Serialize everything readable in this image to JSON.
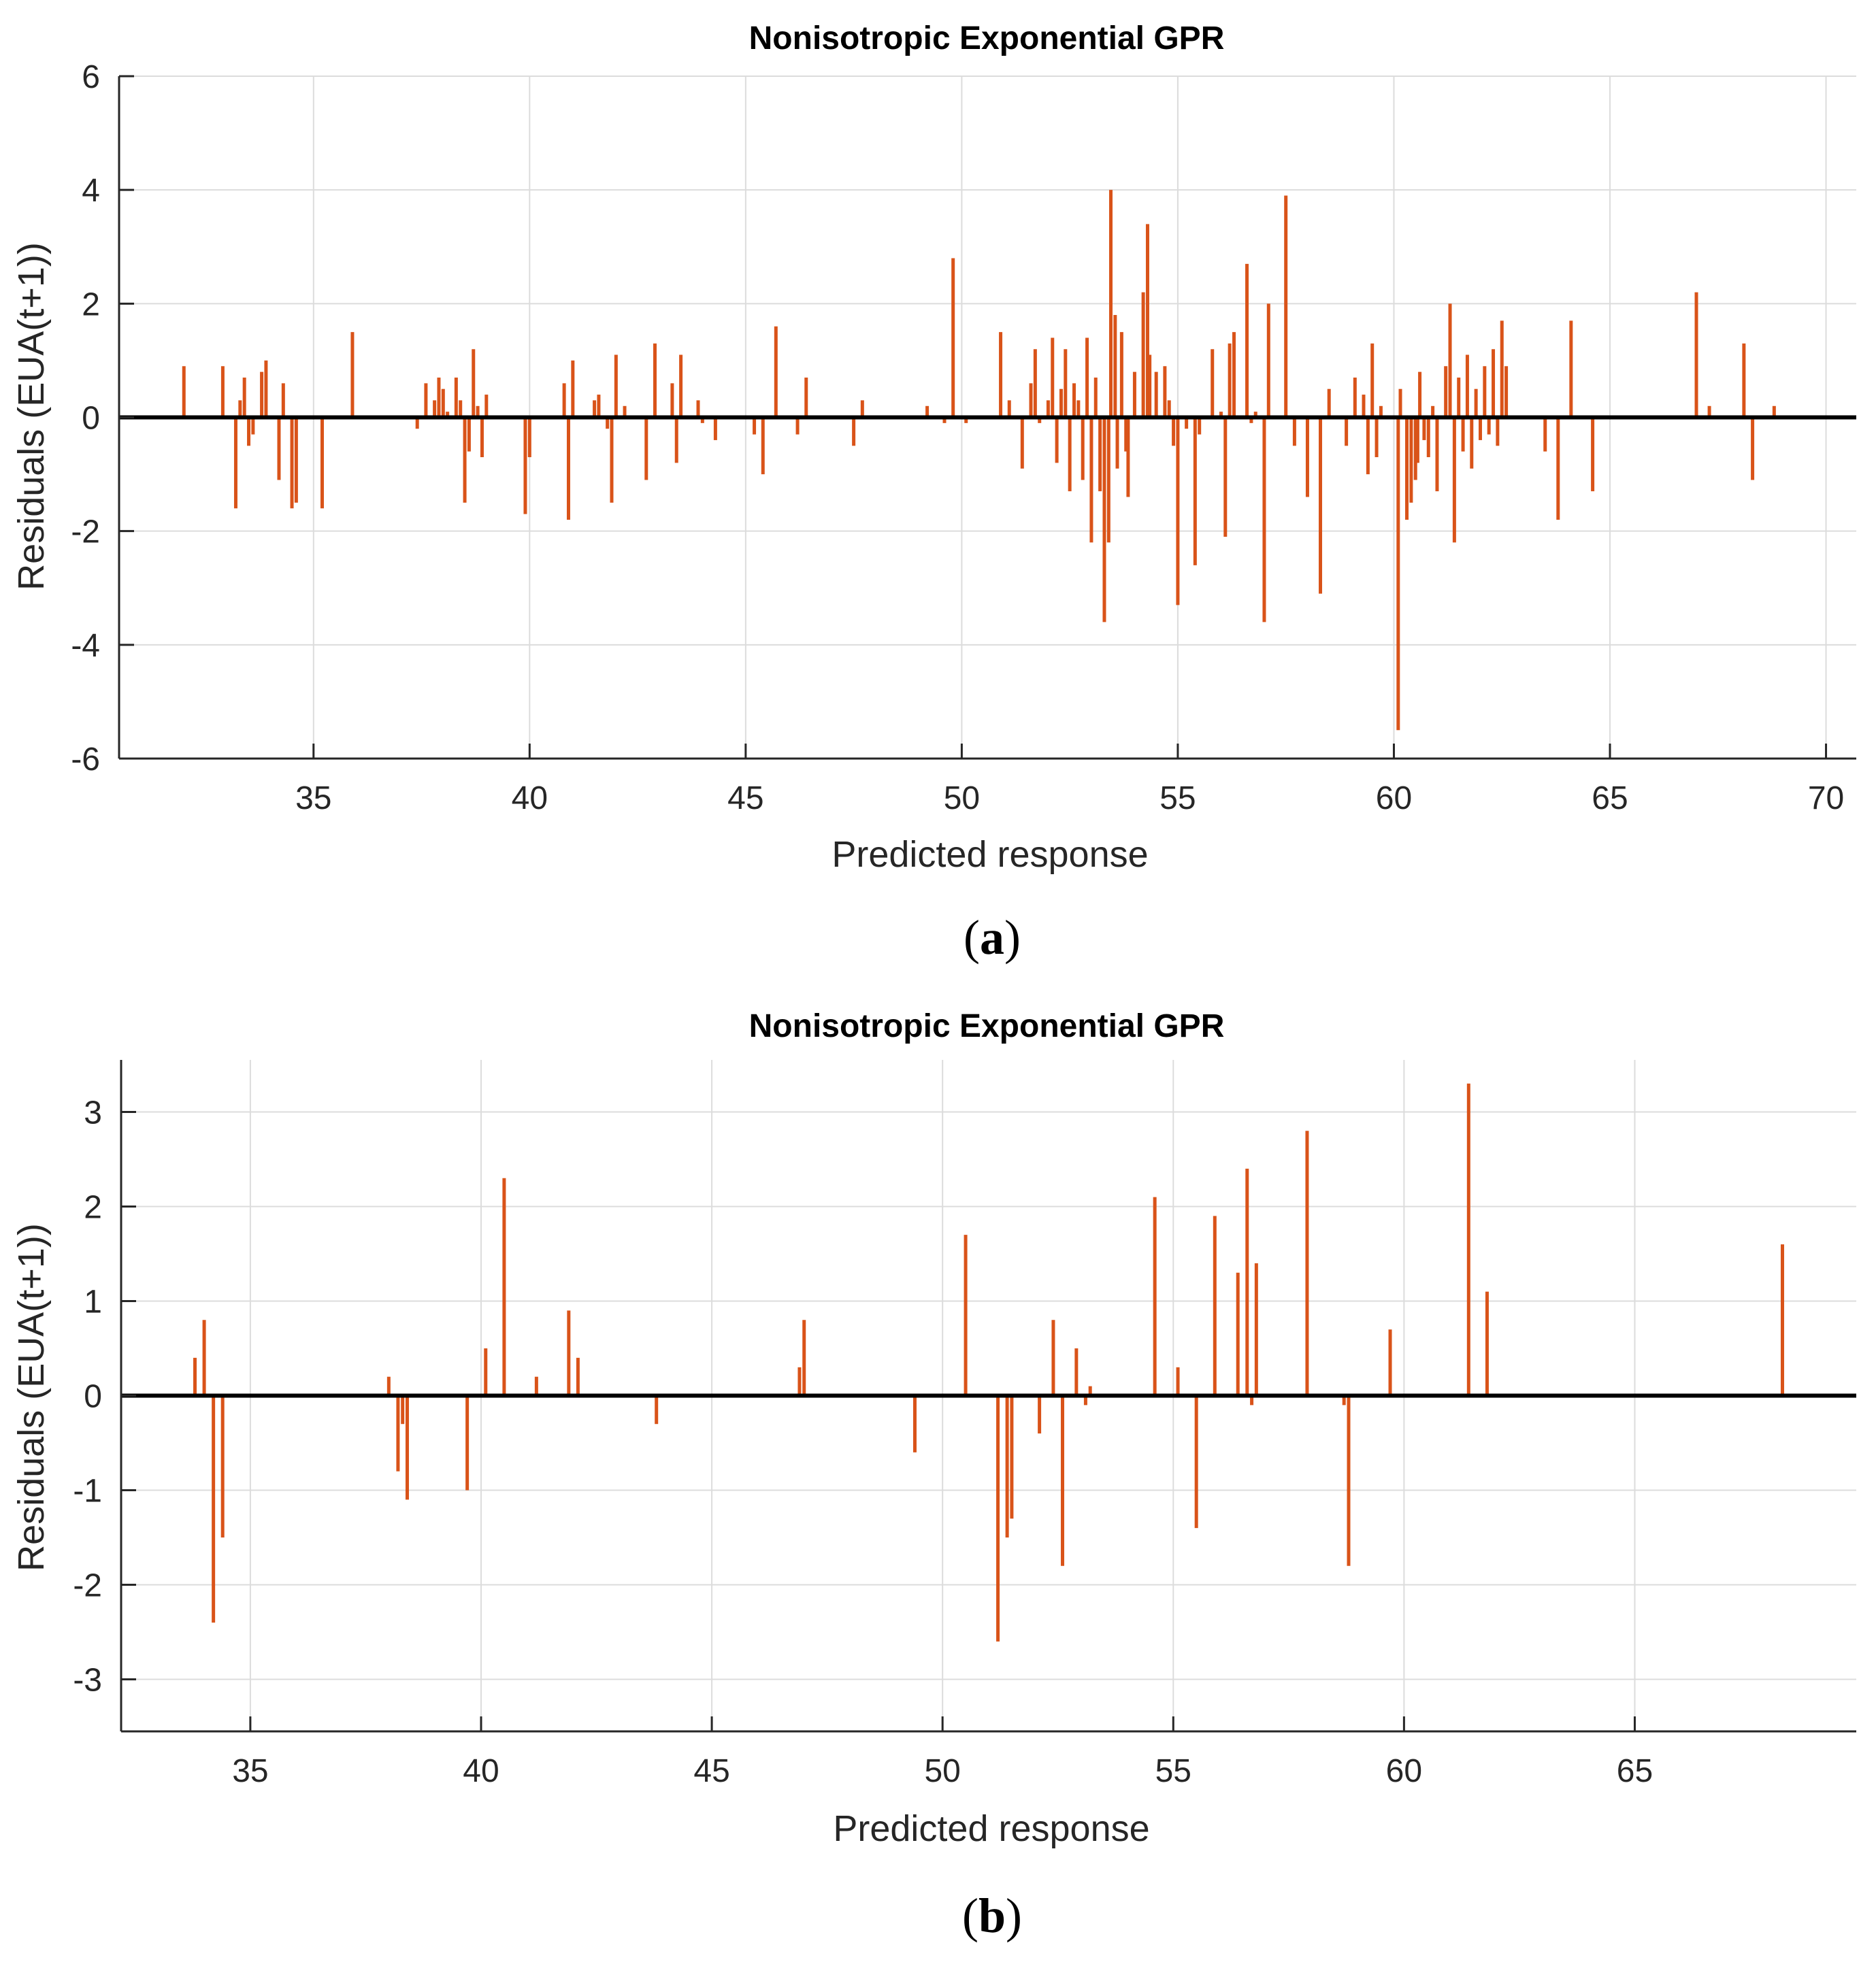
{
  "colors": {
    "residual": "#d95319",
    "zero_line": "#000000",
    "grid": "#dcdcdc",
    "axis": "#262626",
    "text": "#262626"
  },
  "chart_data": [
    {
      "type": "stem",
      "title": "Nonisotropic Exponential GPR",
      "xlabel": "Predicted response",
      "ylabel": "Residuals (EUA(t+1))",
      "caption": "(a)",
      "caption_letter": "a",
      "xlim": [
        30.5,
        70.7
      ],
      "ylim": [
        -6,
        6
      ],
      "xticks": [
        35,
        40,
        45,
        50,
        55,
        60,
        65,
        70
      ],
      "yticks": [
        -6,
        -4,
        -2,
        0,
        2,
        4,
        6
      ],
      "grid": true,
      "zero_line": 0,
      "series": [
        {
          "name": "Residuals",
          "x": [
            32.0,
            32.9,
            33.2,
            33.3,
            33.4,
            33.5,
            33.6,
            33.8,
            33.9,
            34.2,
            34.3,
            34.5,
            34.6,
            35.2,
            35.9,
            37.4,
            37.6,
            37.8,
            37.9,
            38.0,
            38.1,
            38.3,
            38.4,
            38.5,
            38.6,
            38.7,
            38.8,
            38.9,
            39.0,
            39.9,
            40.0,
            40.8,
            40.9,
            41.0,
            41.5,
            41.6,
            41.8,
            41.9,
            42.0,
            42.2,
            42.7,
            42.9,
            43.3,
            43.4,
            43.5,
            43.9,
            44.0,
            44.3,
            45.2,
            45.4,
            45.7,
            46.2,
            46.4,
            47.5,
            47.7,
            49.2,
            49.6,
            49.8,
            50.1,
            50.9,
            51.1,
            51.4,
            51.6,
            51.7,
            51.8,
            52.0,
            52.1,
            52.2,
            52.3,
            52.4,
            52.5,
            52.6,
            52.7,
            52.8,
            52.9,
            53.0,
            53.1,
            53.2,
            53.3,
            53.4,
            53.45,
            53.55,
            53.6,
            53.7,
            53.8,
            53.85,
            54.0,
            54.2,
            54.3,
            54.35,
            54.5,
            54.7,
            54.8,
            54.9,
            55.0,
            55.2,
            55.4,
            55.5,
            55.8,
            56.0,
            56.1,
            56.2,
            56.3,
            56.6,
            56.7,
            56.8,
            57.0,
            57.1,
            57.5,
            57.7,
            58.0,
            58.3,
            58.5,
            58.9,
            59.1,
            59.3,
            59.4,
            59.5,
            59.6,
            59.7,
            60.1,
            60.15,
            60.3,
            60.4,
            60.5,
            60.55,
            60.6,
            60.7,
            60.8,
            60.9,
            61.0,
            61.2,
            61.3,
            61.4,
            61.5,
            61.6,
            61.7,
            61.8,
            61.9,
            62.0,
            62.1,
            62.2,
            62.3,
            62.4,
            62.5,
            62.6,
            63.5,
            63.8,
            64.1,
            64.6,
            67.0,
            67.3,
            68.1,
            68.3,
            68.8
          ],
          "y": [
            0.9,
            0.9,
            -1.6,
            0.3,
            0.7,
            -0.5,
            -0.3,
            0.8,
            1.0,
            -1.1,
            0.6,
            -1.6,
            -1.5,
            -1.6,
            1.5,
            -0.2,
            0.6,
            0.3,
            0.7,
            0.5,
            0.1,
            0.7,
            0.3,
            -1.5,
            -0.6,
            1.2,
            0.2,
            -0.7,
            0.4,
            -1.7,
            -0.7,
            0.6,
            -1.8,
            1.0,
            0.3,
            0.4,
            -0.2,
            -1.5,
            1.1,
            0.2,
            -1.1,
            1.3,
            0.6,
            -0.8,
            1.1,
            0.3,
            -0.1,
            -0.4,
            -0.3,
            -1.0,
            1.6,
            -0.3,
            0.7,
            -0.5,
            0.3,
            0.2,
            -0.1,
            2.8,
            -0.1,
            1.5,
            0.3,
            -0.9,
            0.6,
            1.2,
            -0.1,
            0.3,
            1.4,
            -0.8,
            0.5,
            1.2,
            -1.3,
            0.6,
            0.3,
            -1.1,
            1.4,
            -2.2,
            0.7,
            -1.3,
            -3.6,
            -2.2,
            4.0,
            1.8,
            -0.9,
            1.5,
            -0.6,
            -1.4,
            0.8,
            2.2,
            3.4,
            1.1,
            0.8,
            0.9,
            0.3,
            -0.5,
            -3.3,
            -0.2,
            -2.6,
            -0.3,
            1.2,
            0.1,
            -2.1,
            1.3,
            1.5,
            2.7,
            -0.1,
            0.1,
            -3.6,
            2.0,
            3.9,
            -0.5,
            -1.4,
            -3.1,
            0.5,
            -0.5,
            0.7,
            0.4,
            -1.0,
            1.3,
            -0.7,
            0.2,
            -5.5,
            0.5,
            -1.8,
            -1.5,
            -1.1,
            -0.8,
            0.8,
            -0.4,
            -0.7,
            0.2,
            -1.3,
            0.9,
            2.0,
            -2.2,
            0.7,
            -0.6,
            1.1,
            -0.9,
            0.5,
            -0.4,
            0.9,
            -0.3,
            1.2,
            -0.5,
            1.7,
            0.9,
            -0.6,
            -1.8,
            1.7,
            -1.3,
            2.2,
            0.2,
            1.3,
            -1.1,
            0.2
          ]
        }
      ]
    },
    {
      "type": "stem",
      "title": "Nonisotropic Exponential GPR",
      "xlabel": "Predicted response",
      "ylabel": "Residuals (EUA(t+1))",
      "caption": "(b)",
      "caption_letter": "b",
      "xlim": [
        32.2,
        69.8
      ],
      "ylim": [
        -3.55,
        3.55
      ],
      "xticks": [
        35,
        40,
        45,
        50,
        55,
        60,
        65
      ],
      "yticks": [
        -3,
        -2,
        -1,
        0,
        1,
        2,
        3
      ],
      "grid": true,
      "zero_line": 0,
      "series": [
        {
          "name": "Residuals",
          "x": [
            33.8,
            34.0,
            34.2,
            34.4,
            38.0,
            38.2,
            38.3,
            38.4,
            39.7,
            40.1,
            40.5,
            41.2,
            41.9,
            42.1,
            43.8,
            46.9,
            47.0,
            49.4,
            50.5,
            51.2,
            51.4,
            51.5,
            52.1,
            52.4,
            52.6,
            52.9,
            53.1,
            53.2,
            54.6,
            55.1,
            55.5,
            55.9,
            56.4,
            56.6,
            56.7,
            56.8,
            57.9,
            58.7,
            58.8,
            59.7,
            61.4,
            61.8,
            68.2
          ],
          "y": [
            0.4,
            0.8,
            -2.4,
            -1.5,
            0.2,
            -0.8,
            -0.3,
            -1.1,
            -1.0,
            0.5,
            2.3,
            0.2,
            0.9,
            0.4,
            -0.3,
            0.3,
            0.8,
            -0.6,
            1.7,
            -2.6,
            -1.5,
            -1.3,
            -0.4,
            0.8,
            -1.8,
            0.5,
            -0.1,
            0.1,
            2.1,
            0.3,
            -1.4,
            1.9,
            1.3,
            2.4,
            -0.1,
            1.4,
            2.8,
            -0.1,
            -1.8,
            0.7,
            3.3,
            1.1,
            1.6
          ]
        }
      ]
    }
  ]
}
